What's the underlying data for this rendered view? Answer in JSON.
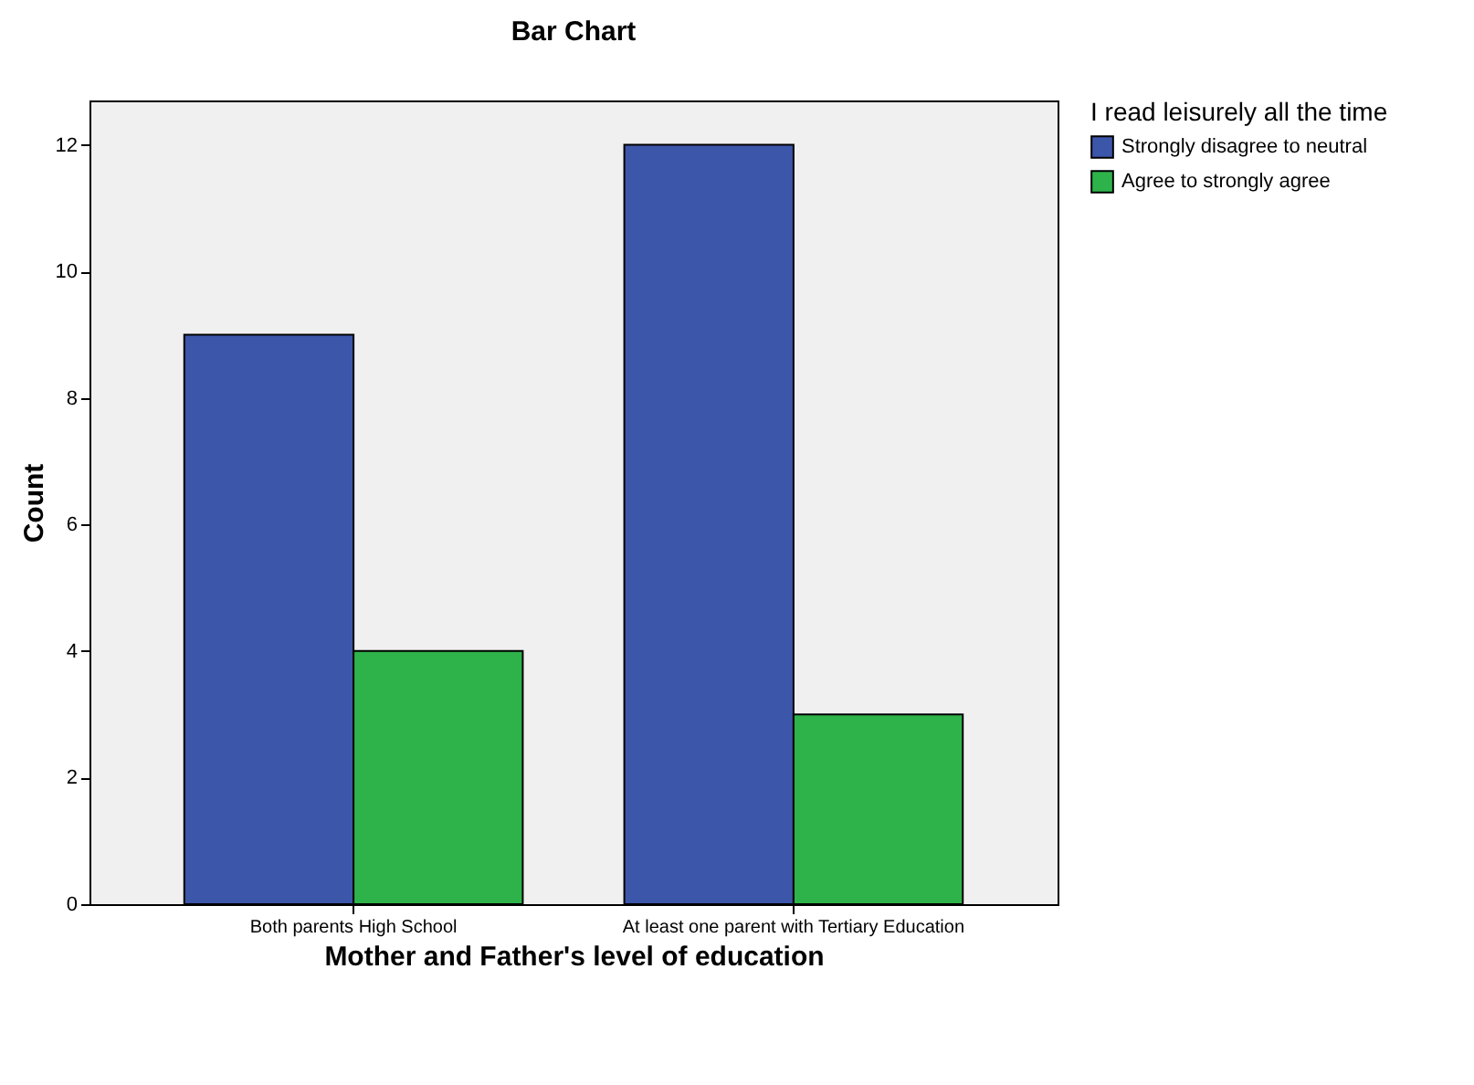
{
  "chart_data": {
    "type": "bar",
    "title": "Bar Chart",
    "xlabel": "Mother and Father's level of education",
    "ylabel": "Count",
    "legend_title": "I read leisurely all the time",
    "categories": [
      "Both parents High School",
      "At least one parent with Tertiary Education"
    ],
    "series": [
      {
        "name": "Strongly disagree to neutral",
        "color": "#3c56aa",
        "values": [
          9,
          12
        ]
      },
      {
        "name": "Agree to strongly agree",
        "color": "#2eb34b",
        "values": [
          4,
          3
        ]
      }
    ],
    "ylim": [
      0,
      12.7
    ],
    "yticks": [
      0,
      2,
      4,
      6,
      8,
      10,
      12
    ],
    "grid": false,
    "legend": "top right"
  }
}
